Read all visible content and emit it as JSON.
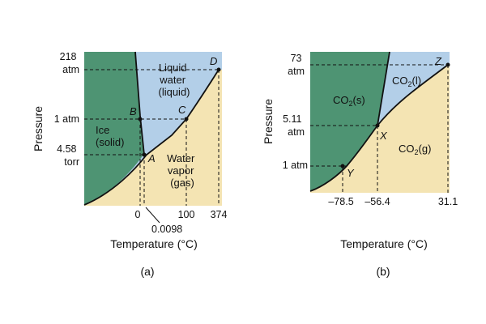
{
  "colors": {
    "solid": "#4e9473",
    "liquid": "#b3cfe8",
    "gas": "#f4e4b3",
    "curve": "#111111"
  },
  "diagram_a": {
    "caption": "(a)",
    "ylabel": "Pressure",
    "xlabel": "Temperature (°C)",
    "yticks": [
      {
        "line1": "218",
        "line2": "atm"
      },
      {
        "line1": "1 atm",
        "line2": ""
      },
      {
        "line1": "4.58",
        "line2": "torr"
      }
    ],
    "xticks": [
      "0",
      "100",
      "374"
    ],
    "xtick_extra": "0.0098",
    "regions": {
      "solid": {
        "line1": "Ice",
        "line2": "(solid)"
      },
      "liquid": {
        "line1": "Liquid",
        "line2": "water",
        "line3": "(liquid)"
      },
      "gas": {
        "line1": "Water",
        "line2": "vapor",
        "line3": "(gas)"
      }
    },
    "points": [
      "A",
      "B",
      "C",
      "D"
    ]
  },
  "diagram_b": {
    "caption": "(b)",
    "ylabel": "Pressure",
    "xlabel": "Temperature (°C)",
    "yticks": [
      {
        "line1": "73",
        "line2": "atm"
      },
      {
        "line1": "5.11",
        "line2": "atm"
      },
      {
        "line1": "1 atm",
        "line2": ""
      }
    ],
    "xticks": [
      "–78.5",
      "–56.4",
      "31.1"
    ],
    "regions": {
      "solid": {
        "base": "CO",
        "sub": "2",
        "phase": "(s)"
      },
      "liquid": {
        "base": "CO",
        "sub": "2",
        "phase": "(l)"
      },
      "gas": {
        "base": "CO",
        "sub": "2",
        "phase": "(g)"
      }
    },
    "points": [
      "X",
      "Y",
      "Z"
    ]
  }
}
